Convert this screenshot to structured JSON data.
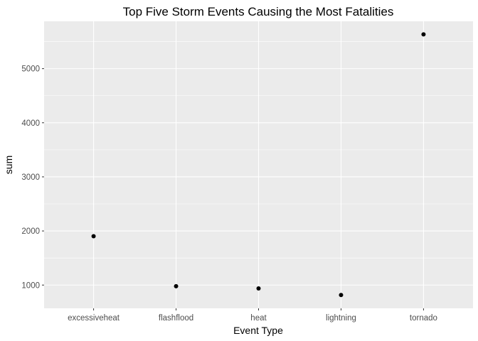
{
  "chart_data": {
    "type": "scatter",
    "title": "Top Five Storm Events Causing the Most Fatalities",
    "xlabel": "Event Type",
    "ylabel": "sum",
    "categories": [
      "excessiveheat",
      "flashflood",
      "heat",
      "lightning",
      "tornado"
    ],
    "values": [
      1903,
      978,
      937,
      816,
      5633
    ],
    "ylim": [
      570,
      5875
    ],
    "yticks": [
      1000,
      2000,
      3000,
      4000,
      5000
    ],
    "grid": true,
    "legend": "none",
    "colors": {
      "panel": "#ebebeb",
      "grid_major": "#ffffff",
      "point": "#000000",
      "tick_label": "#4d4d4d",
      "tick_mark": "#333333"
    }
  }
}
